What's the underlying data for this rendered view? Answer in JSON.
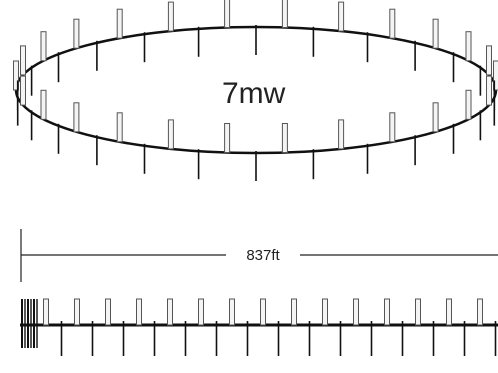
{
  "diagram": {
    "ring_label": "7mw",
    "dimension_label": "837ft",
    "colors": {
      "background": "#ffffff",
      "structure": "#111111",
      "outline_bar": "#555555",
      "outline_bar_fill": "#f4f4f4"
    }
  }
}
